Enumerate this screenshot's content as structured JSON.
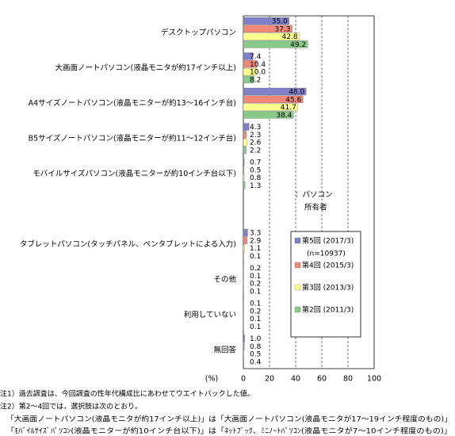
{
  "chart_data": {
    "type": "hbar",
    "categories": [
      "デスクトップパソコン",
      "大画面ノートパソコン(液晶モニタが約17インチ以上)",
      "A4サイズノートパソコン(液晶モニターが約13～16インチ台)",
      "B5サイズノートパソコン(液晶モニターが約11～12インチ台)",
      "モバイルサイズパソコン(液晶モニターが約10インチ台以下)",
      null,
      "タブレットパソコン(タッチパネル、ペンタブレットによる入力)",
      "その他",
      "利用していない",
      "無回答"
    ],
    "series": [
      {
        "name": "第5回 (2017/3)",
        "color": "#8080c8",
        "values": [
          35.0,
          7.4,
          48.0,
          4.3,
          0.7,
          null,
          3.3,
          0.2,
          0.1,
          1.0
        ],
        "value_labels": [
          "35.0",
          "7.4",
          "48.0",
          "4.3",
          "0.7",
          null,
          "3.3",
          "0.2",
          "0.1",
          "1.0"
        ]
      },
      {
        "name": "第4回 (2015/3)",
        "color": "#f08878",
        "values": [
          37.3,
          10.4,
          45.6,
          2.3,
          0.5,
          null,
          2.9,
          0.1,
          0.2,
          0.8
        ],
        "value_labels": [
          "37.3",
          "10.4",
          "45.6",
          "2.3",
          "0.5",
          null,
          "2.9",
          "0.1",
          "0.2",
          "0.8"
        ]
      },
      {
        "name": "第3回 (2013/3)",
        "color": "#ffff90",
        "values": [
          42.8,
          10.0,
          41.7,
          2.6,
          0.8,
          null,
          1.1,
          0.2,
          0.1,
          0.5
        ],
        "value_labels": [
          "42.8",
          "10.0",
          "41.7",
          "2.6",
          "0.8",
          null,
          "1.1",
          "0.2",
          "0.1",
          "0.5"
        ]
      },
      {
        "name": "第2回 (2011/3)",
        "color": "#88c888",
        "values": [
          49.2,
          8.2,
          38.4,
          2.2,
          1.3,
          null,
          0.1,
          0.1,
          0.1,
          0.4
        ],
        "value_labels": [
          "49.2",
          "8.2",
          "38.4",
          "2.2",
          "1.3",
          null,
          "0.1",
          "0.1",
          "0.1",
          "0.4"
        ]
      }
    ],
    "legend_note": "(n=10937)",
    "annotation": [
      "：パソコン",
      "所有者"
    ],
    "xlabel": "(%)",
    "xlim": [
      0,
      100
    ],
    "xticks": [
      0,
      20,
      40,
      60,
      80,
      100
    ],
    "grid": true,
    "notes": [
      "注1）過去調査は、今回調査の性年代構成比にあわせてウエイトバックした値。",
      "注2）第2～4回では，選択肢は次のとおり。",
      "「大画面ノートパソコン(液晶モニタが約17インチ以上)」は「大画面ノートパソコン(液晶モニタが17～19インチ程度のもの)」",
      "「ﾓﾊﾞｲﾙｻｲｽﾞﾊﾟｿｺﾝ(液晶モニターが約10インチ台以下)」は「ﾈｯﾄﾌﾞｯｸ、ﾐﾆﾉｰﾄﾊﾟｿｺﾝ(液晶モニタが7～10インチ程度のもの)」"
    ]
  }
}
